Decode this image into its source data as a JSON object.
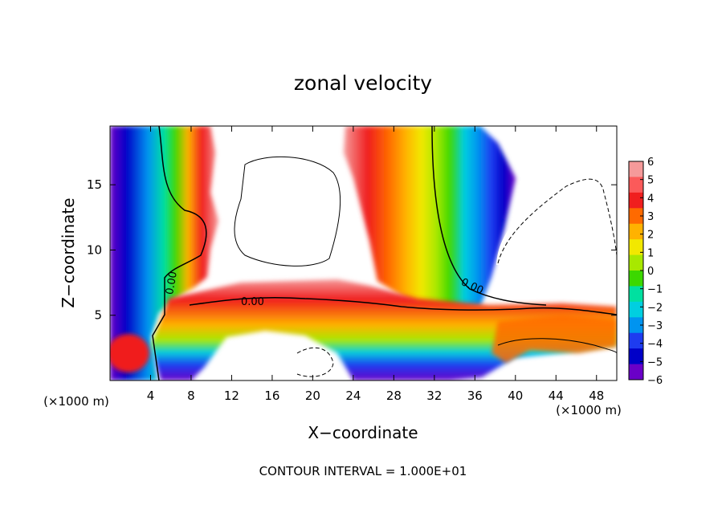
{
  "chart_data": {
    "type": "heatmap",
    "title": "zonal velocity",
    "xlabel": "X−coordinate",
    "ylabel": "Z−coordinate",
    "x_scale_note": "(×1000 m)",
    "y_scale_note": "(×1000 m)",
    "xlim": [
      0,
      50
    ],
    "ylim": [
      0,
      19.5
    ],
    "x_ticks": [
      4,
      8,
      12,
      16,
      20,
      24,
      28,
      32,
      36,
      40,
      44,
      48
    ],
    "y_ticks": [
      5,
      10,
      15
    ],
    "colorbar": {
      "min": -6,
      "max": 6,
      "tick_values": [
        6,
        5,
        4,
        3,
        2,
        1,
        0,
        -1,
        -2,
        -3,
        -4,
        -5,
        -6
      ],
      "tick_labels": [
        "6",
        "5",
        "4",
        "3",
        "2",
        "1",
        "0",
        "−1",
        "−2",
        "−3",
        "−4",
        "−5",
        "−6"
      ],
      "colors": [
        "#f59a9a",
        "#fb5a5a",
        "#f01e1e",
        "#ff6a00",
        "#ffb200",
        "#f2e800",
        "#a8e800",
        "#3cd800",
        "#00e0a0",
        "#00cfe0",
        "#0094f0",
        "#1e3cf0",
        "#0000c8",
        "#6a00c8"
      ]
    },
    "contour_labels": [
      "0.00",
      "0.00",
      "0.00"
    ],
    "footnote": "CONTOUR INTERVAL = 1.000E+01"
  }
}
